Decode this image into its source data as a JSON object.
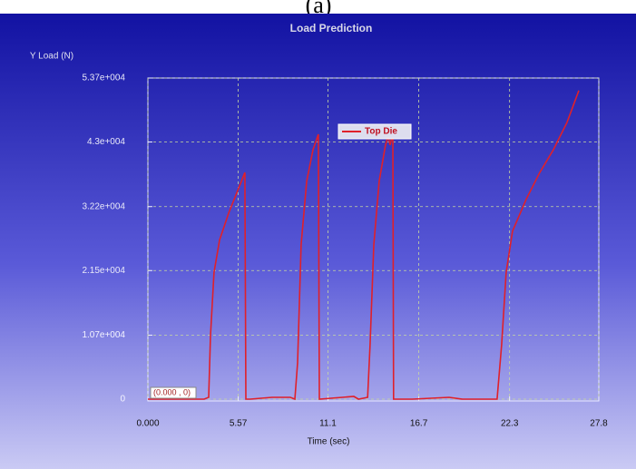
{
  "caption": "(a)",
  "chart_data": {
    "type": "line",
    "title": "Load Prediction",
    "y_label": "Y Load (N)",
    "x_label": "Time (sec)",
    "annotation": "(0.000 , 0)",
    "xlim": [
      0,
      27.8
    ],
    "xticks": [
      {
        "value": 0,
        "label": "0.000"
      },
      5.57,
      11.1,
      16.7,
      22.3,
      27.8
    ],
    "ylim": [
      0,
      53700
    ],
    "yticks": [
      0,
      {
        "value": 10700,
        "label": "1.07e+004"
      },
      {
        "value": 21500,
        "label": "2.15e+004"
      },
      {
        "value": 32200,
        "label": "3.22e+004"
      },
      {
        "value": 43000,
        "label": "4.3e+004"
      },
      {
        "value": 53700,
        "label": "5.37e+004"
      }
    ],
    "grid": true,
    "series": [
      {
        "name": "Top Die",
        "color": "#e0202a",
        "x": [
          0,
          3.47,
          3.75,
          3.86,
          4.08,
          4.42,
          4.98,
          5.54,
          5.98,
          6.04,
          6.3,
          7.66,
          8.78,
          9.06,
          9.23,
          9.45,
          9.79,
          10.18,
          10.51,
          10.57,
          12.7,
          12.98,
          13.55,
          13.7,
          13.93,
          14.26,
          14.65,
          14.82,
          14.93,
          15.1,
          15.15,
          16.3,
          18.57,
          19.4,
          21.53,
          21.81,
          22.09,
          22.48,
          23.32,
          24.16,
          25.0,
          25.84,
          26.57
        ],
        "values": [
          0,
          0,
          300,
          10600,
          21200,
          26600,
          31100,
          34900,
          37900,
          0,
          0,
          300,
          300,
          0,
          6100,
          25800,
          36400,
          41700,
          44300,
          0,
          450,
          0,
          300,
          9100,
          25800,
          36400,
          42500,
          44000,
          42500,
          44300,
          0,
          0,
          300,
          0,
          0,
          9100,
          21200,
          28100,
          33400,
          37900,
          41700,
          46300,
          51600
        ]
      }
    ]
  }
}
